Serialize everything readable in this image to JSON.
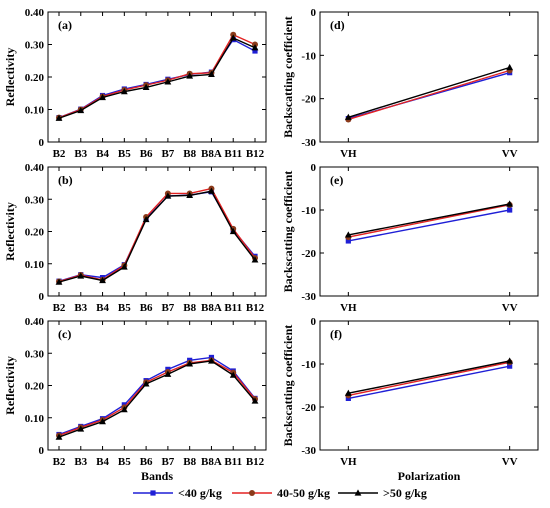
{
  "legend": [
    {
      "label": "<40 g/kg",
      "color": "#1f1fd6",
      "marker": "square"
    },
    {
      "label": "40-50 g/kg",
      "color": "#e32222",
      "marker": "circle",
      "marker_color": "#8b3a1a"
    },
    {
      "label": ">50 g/kg",
      "color": "#000000",
      "marker": "triangle"
    }
  ],
  "chart_data": [
    {
      "type": "line",
      "panel": "(a)",
      "ylabel": "Reflectivity",
      "xlabel": "",
      "categories": [
        "B2",
        "B3",
        "B4",
        "B5",
        "B6",
        "B7",
        "B8",
        "B8A",
        "B11",
        "B12"
      ],
      "ylim": [
        0,
        0.4
      ],
      "yticks": [
        0,
        0.1,
        0.2,
        0.3,
        0.4
      ],
      "ytick_labels": [
        "0",
        "0.10",
        "0.20",
        "0.30",
        "0.40"
      ],
      "series": [
        {
          "name": "<40 g/kg",
          "values": [
            0.075,
            0.101,
            0.143,
            0.163,
            0.177,
            0.193,
            0.208,
            0.215,
            0.315,
            0.28
          ]
        },
        {
          "name": "40-50 g/kg",
          "values": [
            0.075,
            0.1,
            0.14,
            0.16,
            0.175,
            0.19,
            0.21,
            0.213,
            0.33,
            0.3
          ]
        },
        {
          "name": ">50 g/kg",
          "values": [
            0.073,
            0.097,
            0.137,
            0.155,
            0.168,
            0.185,
            0.203,
            0.208,
            0.32,
            0.29
          ]
        }
      ]
    },
    {
      "type": "line",
      "panel": "(d)",
      "ylabel": "Backscatting coefficient",
      "xlabel": "",
      "categories": [
        "VH",
        "VV"
      ],
      "ylim": [
        -30,
        0
      ],
      "yticks": [
        -30,
        -20,
        -10,
        0
      ],
      "ytick_labels": [
        "-30",
        "-20",
        "-10",
        "0"
      ],
      "series": [
        {
          "name": "<40 g/kg",
          "values": [
            -24.6,
            -14.0
          ]
        },
        {
          "name": "40-50 g/kg",
          "values": [
            -24.8,
            -13.5
          ]
        },
        {
          "name": ">50 g/kg",
          "values": [
            -24.3,
            -12.8
          ]
        }
      ]
    },
    {
      "type": "line",
      "panel": "(b)",
      "ylabel": "Reflectivity",
      "xlabel": "",
      "categories": [
        "B2",
        "B3",
        "B4",
        "B5",
        "B6",
        "B7",
        "B8",
        "B8A",
        "B11",
        "B12"
      ],
      "ylim": [
        0,
        0.4
      ],
      "yticks": [
        0,
        0.1,
        0.2,
        0.3,
        0.4
      ],
      "ytick_labels": [
        "0",
        "0.10",
        "0.20",
        "0.30",
        "0.40"
      ],
      "series": [
        {
          "name": "<40 g/kg",
          "values": [
            0.046,
            0.066,
            0.057,
            0.097,
            0.24,
            0.31,
            0.313,
            0.323,
            0.205,
            0.123
          ]
        },
        {
          "name": "40-50 g/kg",
          "values": [
            0.045,
            0.065,
            0.05,
            0.095,
            0.245,
            0.318,
            0.318,
            0.333,
            0.208,
            0.118
          ]
        },
        {
          "name": ">50 g/kg",
          "values": [
            0.043,
            0.062,
            0.048,
            0.09,
            0.237,
            0.31,
            0.312,
            0.325,
            0.2,
            0.112
          ]
        }
      ]
    },
    {
      "type": "line",
      "panel": "(e)",
      "ylabel": "Backscatting coefficient",
      "xlabel": "",
      "categories": [
        "VH",
        "VV"
      ],
      "ylim": [
        -30,
        0
      ],
      "yticks": [
        -30,
        -20,
        -10,
        0
      ],
      "ytick_labels": [
        "-30",
        "-20",
        "-10",
        "0"
      ],
      "series": [
        {
          "name": "<40 g/kg",
          "values": [
            -17.2,
            -10.0
          ]
        },
        {
          "name": "40-50 g/kg",
          "values": [
            -16.3,
            -8.8
          ]
        },
        {
          "name": ">50 g/kg",
          "values": [
            -15.8,
            -8.6
          ]
        }
      ]
    },
    {
      "type": "line",
      "panel": "(c)",
      "ylabel": "Reflectivity",
      "xlabel": "Bands",
      "categories": [
        "B2",
        "B3",
        "B4",
        "B5",
        "B6",
        "B7",
        "B8",
        "B8A",
        "B11",
        "B12"
      ],
      "ylim": [
        0,
        0.4
      ],
      "yticks": [
        0,
        0.1,
        0.2,
        0.3,
        0.4
      ],
      "ytick_labels": [
        "0",
        "0.10",
        "0.20",
        "0.30",
        "0.40"
      ],
      "series": [
        {
          "name": "<40 g/kg",
          "values": [
            0.048,
            0.073,
            0.097,
            0.14,
            0.215,
            0.25,
            0.278,
            0.287,
            0.245,
            0.16
          ]
        },
        {
          "name": "40-50 g/kg",
          "values": [
            0.045,
            0.07,
            0.093,
            0.132,
            0.21,
            0.242,
            0.27,
            0.278,
            0.24,
            0.158
          ]
        },
        {
          "name": ">50 g/kg",
          "values": [
            0.04,
            0.065,
            0.088,
            0.125,
            0.205,
            0.235,
            0.267,
            0.276,
            0.232,
            0.152
          ]
        }
      ]
    },
    {
      "type": "line",
      "panel": "(f)",
      "ylabel": "Backscatting coefficient",
      "xlabel": "Polarization",
      "categories": [
        "VH",
        "VV"
      ],
      "ylim": [
        -30,
        0
      ],
      "yticks": [
        -30,
        -20,
        -10,
        0
      ],
      "ytick_labels": [
        "-30",
        "-20",
        "-10",
        "0"
      ],
      "series": [
        {
          "name": "<40 g/kg",
          "values": [
            -18.0,
            -10.5
          ]
        },
        {
          "name": "40-50 g/kg",
          "values": [
            -17.3,
            -9.6
          ]
        },
        {
          "name": ">50 g/kg",
          "values": [
            -16.8,
            -9.3
          ]
        }
      ]
    }
  ]
}
